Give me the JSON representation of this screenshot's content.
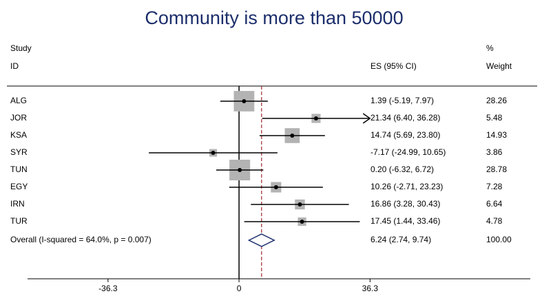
{
  "chart_data": {
    "type": "forest",
    "title": "Community is more than 50000",
    "headers": {
      "study": "Study",
      "id": "ID",
      "es": "ES (95% CI)",
      "pct": "%",
      "weight": "Weight"
    },
    "studies": [
      "ALG",
      "JOR",
      "KSA",
      "SYR",
      "TUN",
      "EGY",
      "IRN",
      "TUR"
    ],
    "es": [
      1.39,
      21.34,
      14.74,
      -7.17,
      0.2,
      10.26,
      16.86,
      17.45
    ],
    "lower": [
      -5.19,
      6.4,
      5.69,
      -24.99,
      -6.32,
      -2.71,
      3.28,
      1.44
    ],
    "upper": [
      7.97,
      36.28,
      23.8,
      10.65,
      6.72,
      23.23,
      30.43,
      33.46
    ],
    "es_labels": [
      "1.39 (-5.19, 7.97)",
      "21.34 (6.40, 36.28)",
      "14.74 (5.69, 23.80)",
      "-7.17 (-24.99, 10.65)",
      "0.20 (-6.32, 6.72)",
      "10.26 (-2.71, 23.23)",
      "16.86 (3.28, 30.43)",
      "17.45 (1.44, 33.46)"
    ],
    "weights": [
      28.26,
      5.48,
      14.93,
      3.86,
      28.78,
      7.28,
      6.64,
      4.78
    ],
    "overall": {
      "label": "Overall  (I-squared = 64.0%, p = 0.007)",
      "es": 6.24,
      "lower": 2.74,
      "upper": 9.74,
      "es_label": "6.24 (2.74, 9.74)",
      "weight": 100,
      "weight_label": "100.00"
    },
    "xlim": [
      -58.6,
      80.7
    ],
    "xticks": [
      -36.3,
      0,
      36.3
    ],
    "colors": {
      "box": "#b3b3b3",
      "diamond": "#1c2e6b",
      "overall_line": "#a0262d"
    }
  }
}
